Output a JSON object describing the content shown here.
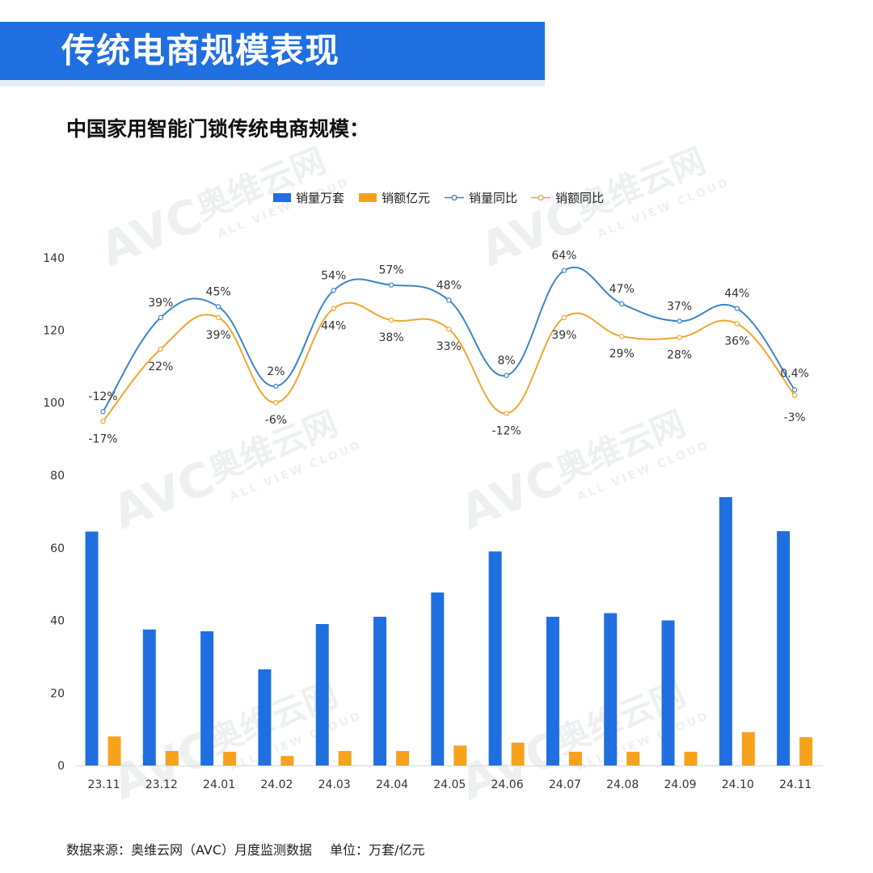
{
  "header": {
    "title": "传统电商规模表现",
    "subtitle": "中国家用智能门锁传统电商规模："
  },
  "footer": {
    "source": "数据来源：奥维云网（AVC）月度监测数据",
    "unit": "单位：万套/亿元"
  },
  "watermark": {
    "brand": "奥维云网",
    "logo": "AVC",
    "tagline": "ALL VIEW CLOUD"
  },
  "colors": {
    "volume": "#1f6fe0",
    "amount": "#f7a21b",
    "volume_yoy_line": "#3a86c8",
    "amount_yoy_line": "#f2a530"
  },
  "chart_data": [
    {
      "type": "bar",
      "categories": [
        "23.11",
        "23.12",
        "24.01",
        "24.02",
        "24.03",
        "24.04",
        "24.05",
        "24.06",
        "24.07",
        "24.08",
        "24.09",
        "24.10",
        "24.11"
      ],
      "series": [
        {
          "name": "销量万套",
          "values": [
            64.5,
            37.5,
            37,
            26.5,
            39,
            41,
            47.7,
            59,
            41,
            42,
            40,
            74,
            64.6
          ]
        },
        {
          "name": "销额亿元",
          "values": [
            8,
            4,
            3.8,
            2.6,
            4,
            4,
            5.5,
            6.3,
            3.8,
            3.8,
            3.8,
            9.2,
            7.8
          ]
        }
      ],
      "ylim": [
        0,
        80
      ],
      "yticks": [
        0,
        20,
        40,
        60,
        80
      ],
      "grid": false,
      "legend": "top-center"
    },
    {
      "type": "line",
      "categories": [
        "23.11",
        "23.12",
        "24.01",
        "24.02",
        "24.03",
        "24.04",
        "24.05",
        "24.06",
        "24.07",
        "24.08",
        "24.09",
        "24.10",
        "24.11"
      ],
      "series": [
        {
          "name": "销量同比",
          "values": [
            97.5,
            123.5,
            126.5,
            104.5,
            131,
            132.5,
            128.3,
            107.5,
            136.5,
            127.3,
            122.5,
            126,
            103.5
          ],
          "labels": [
            "-12%",
            "39%",
            "45%",
            "2%",
            "54%",
            "57%",
            "48%",
            "8%",
            "64%",
            "47%",
            "37%",
            "44%",
            "0.4%"
          ]
        },
        {
          "name": "销额同比",
          "values": [
            94.8,
            114.8,
            123.5,
            100,
            126,
            122.8,
            120.3,
            97,
            123.5,
            118.3,
            118,
            121.8,
            102
          ],
          "labels": [
            "-17%",
            "22%",
            "39%",
            "-6%",
            "44%",
            "38%",
            "33%",
            "-12%",
            "39%",
            "29%",
            "28%",
            "36%",
            "-3%"
          ]
        }
      ],
      "ylim": [
        100,
        140
      ],
      "yticks": [
        100,
        120,
        140
      ],
      "grid": false
    }
  ]
}
